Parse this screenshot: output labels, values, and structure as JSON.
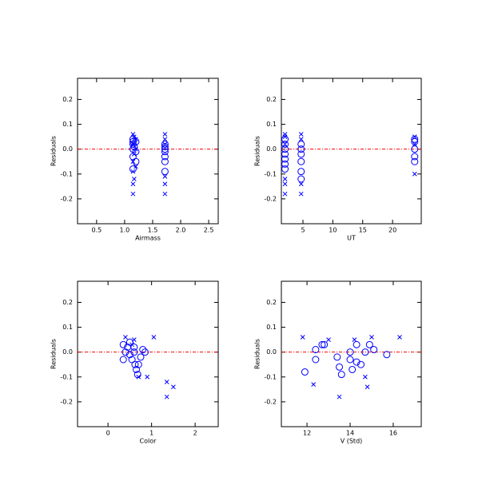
{
  "chart_data": [
    {
      "type": "scatter",
      "xlabel": "Airmass",
      "ylabel": "Residuals",
      "xlim": [
        0.16,
        2.67
      ],
      "ylim": [
        -0.3,
        0.285
      ],
      "xticks": [
        0.5,
        {
          "value": 1.0,
          "label": "1.0"
        },
        1.5,
        {
          "value": 2.0,
          "label": "2.0"
        },
        2.5
      ],
      "yticks": [
        -0.2,
        -0.1,
        {
          "value": 0.0,
          "label": "0.0"
        },
        0.1,
        0.2
      ],
      "reference_line": {
        "value": 0,
        "color": "#ff0000"
      },
      "series": [
        {
          "marker": "circle",
          "color": "#0000ff",
          "x": [
            1.15,
            1.15,
            1.15,
            1.17,
            1.15,
            1.2,
            1.15,
            1.2,
            1.15,
            1.2,
            1.72,
            1.72,
            1.72,
            1.72,
            1.72,
            1.72,
            1.72
          ],
          "values": [
            0.04,
            0.03,
            0.02,
            0.01,
            0.0,
            -0.01,
            -0.03,
            -0.05,
            -0.08,
            0.03,
            0.02,
            0.01,
            0.0,
            -0.01,
            -0.03,
            -0.05,
            -0.09
          ]
        },
        {
          "marker": "cross",
          "color": "#0000ff",
          "x": [
            1.15,
            1.17,
            1.2,
            1.15,
            1.2,
            1.17,
            1.15,
            1.2,
            1.15,
            1.17,
            1.15,
            1.15,
            1.72,
            1.72,
            1.72,
            1.72,
            1.72,
            1.72
          ],
          "values": [
            0.06,
            0.05,
            0.04,
            0.02,
            0.0,
            -0.02,
            -0.05,
            -0.07,
            -0.09,
            -0.12,
            -0.14,
            -0.18,
            0.06,
            0.04,
            0.02,
            -0.11,
            -0.14,
            -0.18
          ]
        }
      ]
    },
    {
      "type": "scatter",
      "xlabel": "UT",
      "ylabel": "Residuals",
      "xlim": [
        1.39,
        24.8
      ],
      "ylim": [
        -0.3,
        0.285
      ],
      "xticks": [
        5,
        10,
        15,
        20
      ],
      "yticks": [
        -0.2,
        -0.1,
        {
          "value": 0.0,
          "label": "0.0"
        },
        0.1,
        0.2
      ],
      "reference_line": {
        "value": 0,
        "color": "#ff0000"
      },
      "series": [
        {
          "marker": "circle",
          "color": "#0000ff",
          "x": [
            2.0,
            2.0,
            2.0,
            2.0,
            2.0,
            2.0,
            2.0,
            4.7,
            4.7,
            4.7,
            4.7,
            4.7,
            4.7,
            23.7,
            23.7,
            23.7,
            23.7,
            23.7
          ],
          "values": [
            0.04,
            0.02,
            0.0,
            -0.02,
            -0.04,
            -0.06,
            -0.08,
            0.02,
            0.0,
            -0.02,
            -0.05,
            -0.09,
            -0.12,
            0.04,
            0.03,
            0.0,
            -0.03,
            -0.05
          ]
        },
        {
          "marker": "cross",
          "color": "#0000ff",
          "x": [
            2.0,
            2.0,
            2.0,
            2.0,
            2.0,
            2.0,
            4.7,
            4.7,
            4.7,
            4.7,
            23.7,
            23.7,
            23.7
          ],
          "values": [
            0.06,
            0.05,
            0.02,
            -0.12,
            -0.14,
            -0.18,
            0.06,
            0.04,
            -0.14,
            -0.18,
            0.05,
            0.02,
            -0.1
          ]
        }
      ]
    },
    {
      "type": "scatter",
      "xlabel": "Color",
      "ylabel": "Residuals",
      "xlim": [
        -0.7,
        2.53
      ],
      "ylim": [
        -0.3,
        0.285
      ],
      "xticks": [
        0,
        1,
        2
      ],
      "yticks": [
        -0.2,
        -0.1,
        {
          "value": 0.0,
          "label": "0.0"
        },
        0.1,
        0.2
      ],
      "reference_line": {
        "value": 0,
        "color": "#ff0000"
      },
      "series": [
        {
          "marker": "circle",
          "color": "#0000ff",
          "x": [
            0.35,
            0.35,
            0.4,
            0.45,
            0.5,
            0.5,
            0.55,
            0.6,
            0.62,
            0.65,
            0.68,
            0.7,
            0.75,
            0.8,
            0.85,
            0.6
          ],
          "values": [
            0.03,
            -0.03,
            0.0,
            0.02,
            0.04,
            -0.01,
            -0.03,
            0.0,
            -0.05,
            -0.07,
            -0.09,
            -0.05,
            -0.02,
            0.01,
            0.0,
            0.02
          ]
        },
        {
          "marker": "cross",
          "color": "#0000ff",
          "x": [
            0.4,
            0.6,
            0.7,
            0.9,
            1.05,
            1.35,
            1.35,
            1.5,
            0.55
          ],
          "values": [
            0.06,
            0.05,
            -0.1,
            -0.1,
            0.06,
            -0.12,
            -0.18,
            -0.14,
            0.03
          ]
        }
      ]
    },
    {
      "type": "scatter",
      "xlabel": "V (Std)",
      "ylabel": "Residuals",
      "xlim": [
        10.81,
        17.3
      ],
      "ylim": [
        -0.3,
        0.285
      ],
      "xticks": [
        12,
        14,
        16
      ],
      "yticks": [
        -0.2,
        -0.1,
        {
          "value": 0.0,
          "label": "0.0"
        },
        0.1,
        0.2
      ],
      "reference_line": {
        "value": 0,
        "color": "#ff0000"
      },
      "series": [
        {
          "marker": "circle",
          "color": "#0000ff",
          "x": [
            11.9,
            12.4,
            12.4,
            12.7,
            12.8,
            13.4,
            13.5,
            13.6,
            14.0,
            14.0,
            14.3,
            14.3,
            14.5,
            14.7,
            14.9,
            15.1,
            15.7,
            14.1
          ],
          "values": [
            -0.08,
            0.01,
            -0.03,
            0.03,
            0.03,
            -0.02,
            -0.06,
            -0.09,
            0.0,
            -0.03,
            0.03,
            -0.04,
            -0.05,
            0.0,
            0.03,
            0.01,
            -0.01,
            -0.07
          ]
        },
        {
          "marker": "cross",
          "color": "#0000ff",
          "x": [
            11.8,
            12.3,
            13.0,
            13.5,
            14.2,
            14.7,
            14.8,
            15.0,
            16.3
          ],
          "values": [
            0.06,
            -0.13,
            0.05,
            -0.18,
            0.05,
            -0.1,
            -0.14,
            0.06,
            0.06
          ]
        }
      ]
    }
  ]
}
